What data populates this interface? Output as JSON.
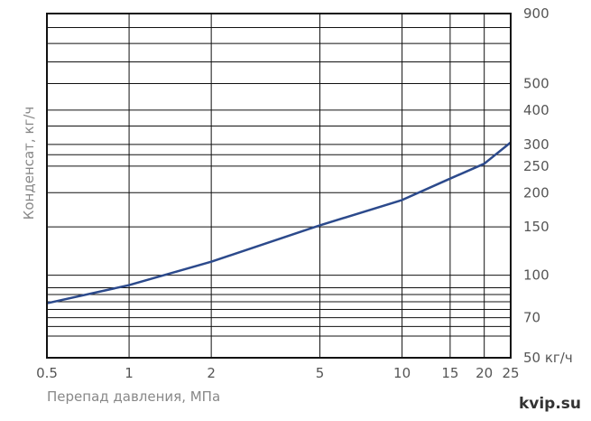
{
  "chart_data": {
    "type": "line",
    "title": "",
    "xlabel": "Перепад давления, МПа",
    "ylabel": "Конденсат, кг/ч",
    "x_scale": "log",
    "y_scale": "log",
    "xlim": [
      0.5,
      25
    ],
    "ylim": [
      50,
      900
    ],
    "x_ticks": [
      0.5,
      1,
      2,
      5,
      10,
      15,
      20,
      25
    ],
    "x_tick_labels": [
      "0.5",
      "1",
      "2",
      "5",
      "10",
      "15",
      "20",
      "25"
    ],
    "y_ticks": [
      50,
      70,
      100,
      150,
      200,
      250,
      300,
      400,
      500,
      900
    ],
    "y_tick_labels": [
      "50 кг/ч",
      "70",
      "100",
      "150",
      "200",
      "250",
      "300",
      "400",
      "500",
      "900"
    ],
    "y_minor_gridlines": [
      60,
      65,
      75,
      80,
      85,
      90,
      275,
      350,
      600,
      700,
      800
    ],
    "grid": true,
    "series": [
      {
        "color": "#2c4a8c",
        "x": [
          0.5,
          1,
          2,
          5,
          10,
          15,
          20,
          25
        ],
        "y": [
          79,
          92,
          112,
          152,
          188,
          225,
          255,
          305
        ]
      }
    ]
  },
  "brand": {
    "text": "kvip.su"
  }
}
